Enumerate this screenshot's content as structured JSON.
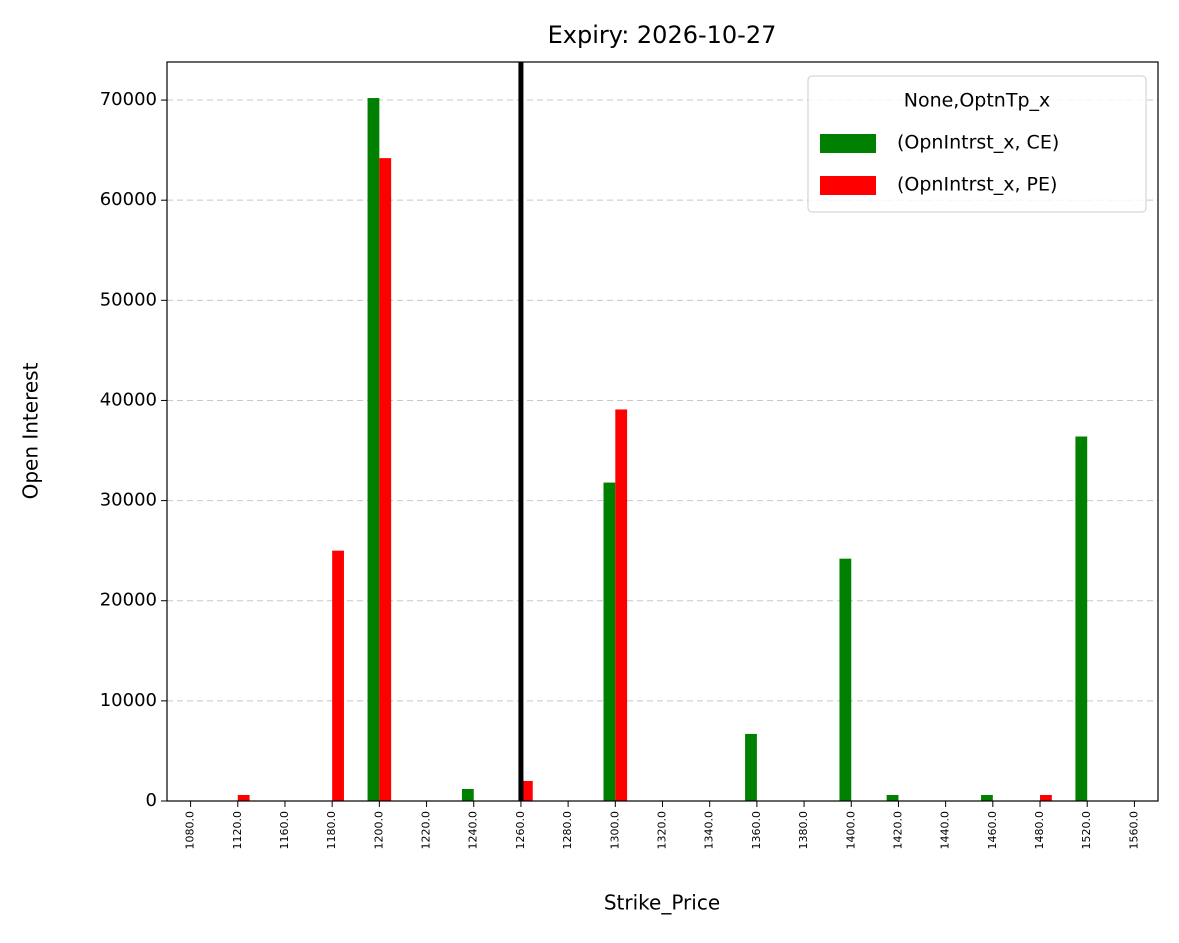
{
  "chart_data": {
    "type": "bar",
    "title": "Expiry: 2026-10-27",
    "x_label": "Strike_Price",
    "y_label": "Open Interest",
    "categories": [
      "1080.0",
      "1120.0",
      "1160.0",
      "1180.0",
      "1200.0",
      "1220.0",
      "1240.0",
      "1260.0",
      "1280.0",
      "1300.0",
      "1320.0",
      "1340.0",
      "1360.0",
      "1380.0",
      "1400.0",
      "1420.0",
      "1440.0",
      "1460.0",
      "1480.0",
      "1520.0",
      "1560.0"
    ],
    "series": [
      {
        "name": "(OpnIntrst_x, CE)",
        "color": "#008000",
        "values": [
          0,
          0,
          0,
          0,
          70200,
          0,
          1200,
          0,
          0,
          31800,
          0,
          0,
          6700,
          0,
          24200,
          600,
          0,
          600,
          0,
          36400,
          0
        ]
      },
      {
        "name": "(OpnIntrst_x, PE)",
        "color": "#ff0000",
        "values": [
          0,
          600,
          0,
          25000,
          64200,
          0,
          0,
          2000,
          0,
          39100,
          0,
          0,
          0,
          0,
          0,
          0,
          0,
          0,
          600,
          0,
          0
        ]
      }
    ],
    "legend_title": "None,OptnTp_x",
    "legend_position": "upper right",
    "vline_at": "1260.0",
    "vline_color": "#000000",
    "ylim": [
      0,
      73800
    ],
    "yticks": [
      0,
      10000,
      20000,
      30000,
      40000,
      50000,
      60000,
      70000
    ],
    "grid": true
  }
}
